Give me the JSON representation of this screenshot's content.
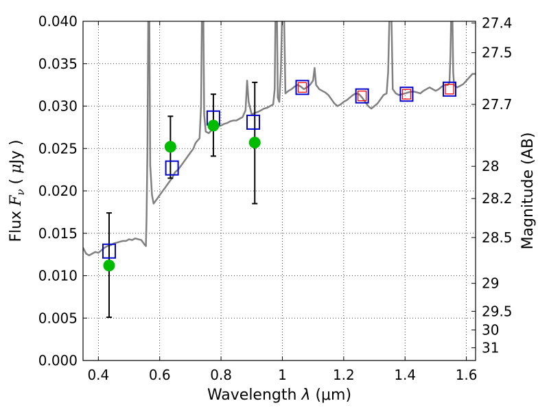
{
  "chart_data": {
    "type": "scatter",
    "title": "",
    "xlabel": "Wavelength  λ (μm)",
    "ylabel": "Flux  F_ν  ( μJy )",
    "ylabel_parts": {
      "prefix": "Flux  ",
      "symbol": "F",
      "subscript": "ν",
      "unit_open": "  ( ",
      "mu": "μ",
      "unit": "Jy )"
    },
    "xlabel_parts": {
      "prefix": "Wavelength  ",
      "symbol": "λ",
      "unit": " (μm)"
    },
    "y2label": "Magnitude (AB)",
    "xlim": [
      0.35,
      1.63
    ],
    "ylim": [
      0.0,
      0.04
    ],
    "grid": true,
    "colors": {
      "spectrum": "#808080",
      "observed": "#00bb00",
      "model_box": "#0000cc",
      "model_box_inner": "#ff0000",
      "errorbar": "#000000"
    },
    "x_ticks": [
      {
        "value": 0.4,
        "label": "0.4"
      },
      {
        "value": 0.6,
        "label": "0.6"
      },
      {
        "value": 0.8,
        "label": "0.8"
      },
      {
        "value": 1.0,
        "label": "1"
      },
      {
        "value": 1.2,
        "label": "1.2"
      },
      {
        "value": 1.4,
        "label": "1.4"
      },
      {
        "value": 1.6,
        "label": "1.6"
      }
    ],
    "y_ticks": [
      {
        "value": 0.0,
        "label": "0.000"
      },
      {
        "value": 0.005,
        "label": "0.005"
      },
      {
        "value": 0.01,
        "label": "0.010"
      },
      {
        "value": 0.015,
        "label": "0.015"
      },
      {
        "value": 0.02,
        "label": "0.020"
      },
      {
        "value": 0.025,
        "label": "0.025"
      },
      {
        "value": 0.03,
        "label": "0.030"
      },
      {
        "value": 0.035,
        "label": "0.035"
      },
      {
        "value": 0.04,
        "label": "0.040"
      }
    ],
    "y2_ticks": [
      {
        "flux": 0.0398,
        "label": "27.4"
      },
      {
        "flux": 0.0363,
        "label": "27.5"
      },
      {
        "flux": 0.0302,
        "label": "27.7"
      },
      {
        "flux": 0.0229,
        "label": "28"
      },
      {
        "flux": 0.0191,
        "label": "28.2"
      },
      {
        "flux": 0.0145,
        "label": "28.5"
      },
      {
        "flux": 0.0091,
        "label": "29"
      },
      {
        "flux": 0.0058,
        "label": "29.5"
      },
      {
        "flux": 0.0036,
        "label": "30"
      },
      {
        "flux": 0.0015,
        "label": "31"
      }
    ],
    "observed": [
      {
        "x": 0.435,
        "y": 0.0112,
        "ylow": 0.0051,
        "yhigh": 0.0174
      },
      {
        "x": 0.635,
        "y": 0.0252,
        "ylow": 0.0215,
        "yhigh": 0.0288
      },
      {
        "x": 0.775,
        "y": 0.0277,
        "ylow": 0.0241,
        "yhigh": 0.0314
      },
      {
        "x": 0.91,
        "y": 0.0257,
        "ylow": 0.0185,
        "yhigh": 0.0328
      }
    ],
    "model_boxes": [
      {
        "x": 0.435,
        "y": 0.0129,
        "inner": false
      },
      {
        "x": 0.64,
        "y": 0.0227,
        "inner": false
      },
      {
        "x": 0.775,
        "y": 0.0286,
        "inner": false
      },
      {
        "x": 0.905,
        "y": 0.0281,
        "inner": false
      },
      {
        "x": 1.065,
        "y": 0.0322,
        "inner": true
      },
      {
        "x": 1.26,
        "y": 0.0312,
        "inner": true
      },
      {
        "x": 1.405,
        "y": 0.0314,
        "inner": true
      },
      {
        "x": 1.545,
        "y": 0.032,
        "inner": true
      }
    ],
    "spectrum": [
      [
        0.35,
        0.0133
      ],
      [
        0.36,
        0.0126
      ],
      [
        0.37,
        0.0124
      ],
      [
        0.38,
        0.0126
      ],
      [
        0.39,
        0.0128
      ],
      [
        0.4,
        0.0127
      ],
      [
        0.41,
        0.013
      ],
      [
        0.42,
        0.0133
      ],
      [
        0.43,
        0.0135
      ],
      [
        0.44,
        0.0136
      ],
      [
        0.45,
        0.0138
      ],
      [
        0.46,
        0.0139
      ],
      [
        0.47,
        0.014
      ],
      [
        0.48,
        0.0141
      ],
      [
        0.49,
        0.0141
      ],
      [
        0.5,
        0.0143
      ],
      [
        0.51,
        0.0142
      ],
      [
        0.52,
        0.0144
      ],
      [
        0.53,
        0.0143
      ],
      [
        0.54,
        0.0142
      ],
      [
        0.55,
        0.0137
      ],
      [
        0.555,
        0.0135
      ],
      [
        0.557,
        0.0165
      ],
      [
        0.56,
        0.0245
      ],
      [
        0.563,
        0.042
      ],
      [
        0.566,
        0.042
      ],
      [
        0.569,
        0.023
      ],
      [
        0.575,
        0.0195
      ],
      [
        0.58,
        0.0185
      ],
      [
        0.59,
        0.019
      ],
      [
        0.6,
        0.0195
      ],
      [
        0.61,
        0.02
      ],
      [
        0.62,
        0.0205
      ],
      [
        0.63,
        0.021
      ],
      [
        0.64,
        0.0215
      ],
      [
        0.65,
        0.0222
      ],
      [
        0.66,
        0.0225
      ],
      [
        0.67,
        0.023
      ],
      [
        0.68,
        0.0235
      ],
      [
        0.69,
        0.024
      ],
      [
        0.7,
        0.0245
      ],
      [
        0.71,
        0.025
      ],
      [
        0.715,
        0.0255
      ],
      [
        0.72,
        0.0258
      ],
      [
        0.73,
        0.0262
      ],
      [
        0.735,
        0.03
      ],
      [
        0.738,
        0.042
      ],
      [
        0.742,
        0.042
      ],
      [
        0.745,
        0.029
      ],
      [
        0.75,
        0.027
      ],
      [
        0.76,
        0.0268
      ],
      [
        0.77,
        0.0272
      ],
      [
        0.78,
        0.0274
      ],
      [
        0.79,
        0.0276
      ],
      [
        0.8,
        0.0277
      ],
      [
        0.81,
        0.0279
      ],
      [
        0.82,
        0.028
      ],
      [
        0.83,
        0.0282
      ],
      [
        0.84,
        0.0283
      ],
      [
        0.85,
        0.0283
      ],
      [
        0.86,
        0.0285
      ],
      [
        0.87,
        0.0287
      ],
      [
        0.88,
        0.0295
      ],
      [
        0.885,
        0.033
      ],
      [
        0.89,
        0.0305
      ],
      [
        0.9,
        0.029
      ],
      [
        0.91,
        0.0292
      ],
      [
        0.92,
        0.0293
      ],
      [
        0.93,
        0.0295
      ],
      [
        0.94,
        0.0297
      ],
      [
        0.95,
        0.0298
      ],
      [
        0.96,
        0.03
      ],
      [
        0.97,
        0.0302
      ],
      [
        0.975,
        0.032
      ],
      [
        0.978,
        0.042
      ],
      [
        0.982,
        0.042
      ],
      [
        0.985,
        0.031
      ],
      [
        0.99,
        0.0305
      ],
      [
        0.995,
        0.034
      ],
      [
        1.0,
        0.042
      ],
      [
        1.005,
        0.042
      ],
      [
        1.01,
        0.0315
      ],
      [
        1.02,
        0.0318
      ],
      [
        1.03,
        0.032
      ],
      [
        1.04,
        0.0323
      ],
      [
        1.05,
        0.0325
      ],
      [
        1.06,
        0.0323
      ],
      [
        1.07,
        0.032
      ],
      [
        1.08,
        0.0322
      ],
      [
        1.09,
        0.0325
      ],
      [
        1.1,
        0.033
      ],
      [
        1.105,
        0.0345
      ],
      [
        1.11,
        0.0325
      ],
      [
        1.12,
        0.032
      ],
      [
        1.13,
        0.0318
      ],
      [
        1.14,
        0.0316
      ],
      [
        1.15,
        0.0313
      ],
      [
        1.16,
        0.0308
      ],
      [
        1.17,
        0.0303
      ],
      [
        1.18,
        0.03
      ],
      [
        1.19,
        0.0302
      ],
      [
        1.2,
        0.0305
      ],
      [
        1.21,
        0.0307
      ],
      [
        1.22,
        0.031
      ],
      [
        1.23,
        0.0313
      ],
      [
        1.24,
        0.0315
      ],
      [
        1.25,
        0.0314
      ],
      [
        1.26,
        0.031
      ],
      [
        1.27,
        0.0305
      ],
      [
        1.28,
        0.03
      ],
      [
        1.29,
        0.0297
      ],
      [
        1.3,
        0.03
      ],
      [
        1.31,
        0.0303
      ],
      [
        1.32,
        0.0308
      ],
      [
        1.33,
        0.0313
      ],
      [
        1.34,
        0.0315
      ],
      [
        1.345,
        0.034
      ],
      [
        1.35,
        0.042
      ],
      [
        1.355,
        0.042
      ],
      [
        1.36,
        0.032
      ],
      [
        1.37,
        0.0315
      ],
      [
        1.38,
        0.0313
      ],
      [
        1.39,
        0.0314
      ],
      [
        1.4,
        0.0315
      ],
      [
        1.41,
        0.0316
      ],
      [
        1.42,
        0.0317
      ],
      [
        1.43,
        0.0317
      ],
      [
        1.44,
        0.0316
      ],
      [
        1.45,
        0.0315
      ],
      [
        1.46,
        0.0318
      ],
      [
        1.47,
        0.032
      ],
      [
        1.48,
        0.0322
      ],
      [
        1.49,
        0.032
      ],
      [
        1.5,
        0.0318
      ],
      [
        1.51,
        0.032
      ],
      [
        1.52,
        0.0323
      ],
      [
        1.53,
        0.0325
      ],
      [
        1.54,
        0.0325
      ],
      [
        1.545,
        0.0328
      ],
      [
        1.548,
        0.036
      ],
      [
        1.551,
        0.042
      ],
      [
        1.554,
        0.042
      ],
      [
        1.557,
        0.034
      ],
      [
        1.56,
        0.0325
      ],
      [
        1.57,
        0.0322
      ],
      [
        1.58,
        0.0324
      ],
      [
        1.59,
        0.0326
      ],
      [
        1.6,
        0.033
      ],
      [
        1.61,
        0.0334
      ],
      [
        1.62,
        0.0338
      ],
      [
        1.63,
        0.0338
      ]
    ]
  }
}
